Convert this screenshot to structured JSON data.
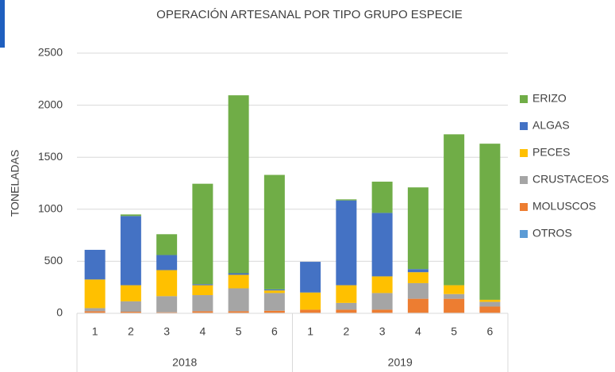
{
  "chart_data": {
    "type": "stacked_bar",
    "title": "OPERACIÓN ARTESANAL POR TIPO GRUPO ESPECIE",
    "y_label": "TONELADAS",
    "categories": [
      "1",
      "2",
      "3",
      "4",
      "5",
      "6",
      "1",
      "2",
      "3",
      "4",
      "5",
      "6"
    ],
    "groups": [
      "2018",
      "2019"
    ],
    "ylim": [
      0,
      2500
    ],
    "yticks": [
      0,
      500,
      1000,
      1500,
      2000,
      2500
    ],
    "grid": true,
    "legend": "right",
    "series": [
      {
        "name": "OTROS",
        "color": "#5b9bd5",
        "values": [
          5,
          5,
          5,
          5,
          5,
          5,
          5,
          5,
          5,
          5,
          5,
          5
        ]
      },
      {
        "name": "MOLUSCOS",
        "color": "#ed7d31",
        "values": [
          15,
          10,
          5,
          15,
          15,
          20,
          30,
          30,
          30,
          135,
          135,
          60
        ]
      },
      {
        "name": "CRUSTACEOS",
        "color": "#a5a5a5",
        "values": [
          30,
          100,
          155,
          155,
          220,
          170,
          0,
          65,
          160,
          150,
          45,
          45
        ]
      },
      {
        "name": "PECES",
        "color": "#ffc000",
        "values": [
          275,
          155,
          250,
          95,
          130,
          25,
          165,
          170,
          160,
          105,
          85,
          20
        ]
      },
      {
        "name": "ALGAS",
        "color": "#4472c4",
        "values": [
          285,
          665,
          145,
          10,
          15,
          10,
          295,
          815,
          610,
          30,
          0,
          0
        ]
      },
      {
        "name": "ERIZO",
        "color": "#70ad47",
        "values": [
          0,
          15,
          200,
          965,
          1710,
          1100,
          0,
          10,
          300,
          785,
          1450,
          1500
        ]
      }
    ]
  }
}
